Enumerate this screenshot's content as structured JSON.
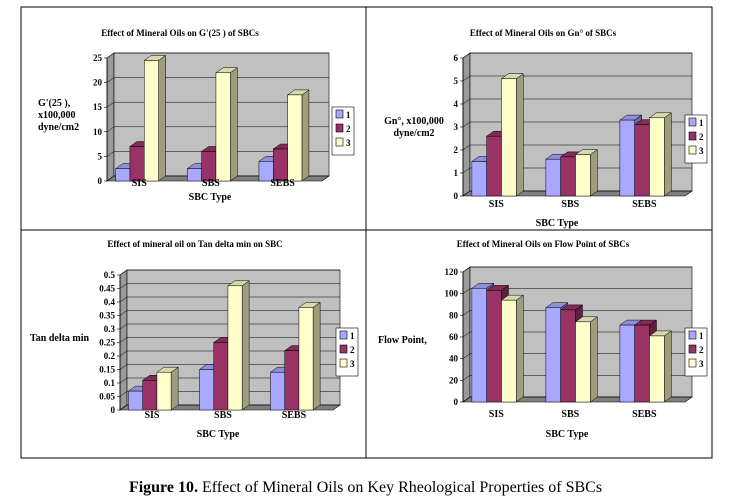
{
  "caption": {
    "label": "Figure 10.",
    "text": "Effect of Mineral Oils on Key Rheological Properties of SBCs"
  },
  "colors": {
    "series": [
      "#a8a8ff",
      "#993366",
      "#ffffcc"
    ],
    "plot_bg": "#c0c0c0",
    "grid": "#000000"
  },
  "chart_data": [
    {
      "type": "bar",
      "title": "Effect of Mineral Oils on G'(25 ) of SBCs",
      "ylabel": "G'(25 ), x100,000 dyne/cm2",
      "ylabel_lines": [
        "G'(25 ),",
        "x100,000",
        "dyne/cm2"
      ],
      "xlabel": "SBC Type",
      "categories": [
        "SIS",
        "SBS",
        "SEBS"
      ],
      "ylim": [
        0,
        25
      ],
      "yticks": [
        0,
        5,
        10,
        15,
        20,
        25
      ],
      "series": [
        {
          "name": "1",
          "values": [
            2.5,
            2.5,
            4
          ]
        },
        {
          "name": "2",
          "values": [
            7,
            6,
            6.5
          ]
        },
        {
          "name": "3",
          "values": [
            24.5,
            22,
            17.5
          ]
        }
      ],
      "legend": "right"
    },
    {
      "type": "bar",
      "title": "Effect of Mineral Oils on Gn° of SBCs",
      "ylabel": "Gn°, x100,000 dyne/cm2",
      "ylabel_lines": [
        "Gn°, x100,000",
        "dyne/cm2"
      ],
      "xlabel": "SBC Type",
      "categories": [
        "SIS",
        "SBS",
        "SEBS"
      ],
      "ylim": [
        0,
        6
      ],
      "yticks": [
        0,
        1,
        2,
        3,
        4,
        5,
        6
      ],
      "series": [
        {
          "name": "1",
          "values": [
            1.5,
            1.6,
            3.3
          ]
        },
        {
          "name": "2",
          "values": [
            2.6,
            1.7,
            3.1
          ]
        },
        {
          "name": "3",
          "values": [
            5.1,
            1.8,
            3.4
          ]
        }
      ],
      "legend": "right"
    },
    {
      "type": "bar",
      "title": "Effect of mineral oil on Tan delta min on SBC",
      "ylabel": "Tan delta min",
      "ylabel_lines": [
        "Tan delta min"
      ],
      "xlabel": "SBC Type",
      "categories": [
        "SIS",
        "SBS",
        "SEBS"
      ],
      "ylim": [
        0,
        0.5
      ],
      "yticks": [
        0,
        0.05,
        0.1,
        0.15,
        0.2,
        0.25,
        0.3,
        0.35,
        0.4,
        0.45,
        0.5
      ],
      "ytick_labels": [
        "0",
        "0.05",
        "0.1",
        "0.15",
        "0.2",
        "0.25",
        "0.3",
        "0.35",
        "0.4",
        "0.45",
        "0.5"
      ],
      "series": [
        {
          "name": "1",
          "values": [
            0.07,
            0.15,
            0.14
          ]
        },
        {
          "name": "2",
          "values": [
            0.11,
            0.25,
            0.22
          ]
        },
        {
          "name": "3",
          "values": [
            0.14,
            0.46,
            0.38
          ]
        }
      ],
      "legend": "right"
    },
    {
      "type": "bar",
      "title": "Effect of Mineral Oils on Flow Point of SBCs",
      "ylabel": "Flow Point,",
      "ylabel_lines": [
        "Flow Point,"
      ],
      "xlabel": "SBC Type",
      "categories": [
        "SIS",
        "SBS",
        "SEBS"
      ],
      "ylim": [
        0,
        120
      ],
      "yticks": [
        0,
        20,
        40,
        60,
        80,
        100,
        120
      ],
      "series": [
        {
          "name": "1",
          "values": [
            105,
            87,
            71
          ]
        },
        {
          "name": "2",
          "values": [
            103,
            85,
            71
          ]
        },
        {
          "name": "3",
          "values": [
            94,
            74,
            61
          ]
        }
      ],
      "legend": "right"
    }
  ]
}
